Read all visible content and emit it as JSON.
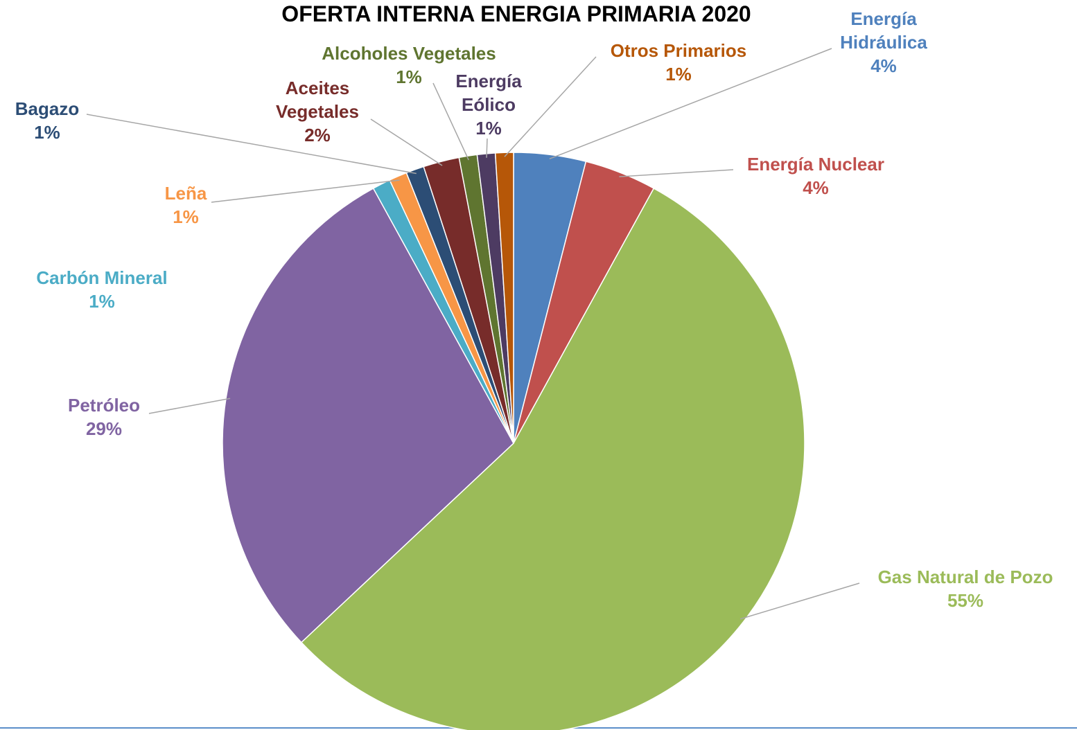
{
  "chart_data": {
    "type": "pie",
    "title": "OFERTA INTERNA ENERGIA PRIMARIA 2020",
    "categories": [
      "Energía Hidráulica",
      "Energía Nuclear",
      "Gas Natural de Pozo",
      "Petróleo",
      "Carbón Mineral",
      "Leña",
      "Bagazo",
      "Aceites Vegetales",
      "Alcoholes Vegetales",
      "Energía Eólico",
      "Otros Primarios"
    ],
    "values": [
      4,
      4,
      55,
      29,
      1,
      1,
      1,
      2,
      1,
      1,
      1
    ],
    "value_labels": [
      "4%",
      "4%",
      "55%",
      "29%",
      "1%",
      "1%",
      "1%",
      "2%",
      "1%",
      "1%",
      "1%"
    ],
    "colors": [
      "#4f81bd",
      "#c0504d",
      "#9bbb59",
      "#8064a2",
      "#4bacc6",
      "#f79646",
      "#2c4d75",
      "#772c2a",
      "#5f7530",
      "#4d3b62",
      "#b65708"
    ]
  }
}
